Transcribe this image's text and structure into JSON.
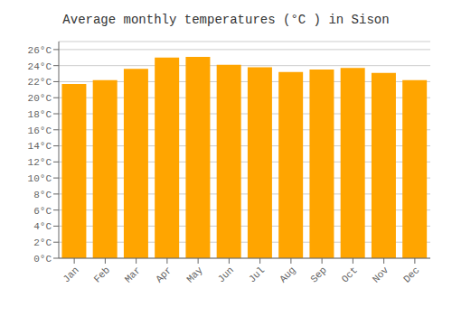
{
  "chart_data": {
    "type": "bar",
    "title": "Average monthly temperatures (°C ) in Sison",
    "categories": [
      "Jan",
      "Feb",
      "Mar",
      "Apr",
      "May",
      "Jun",
      "Jul",
      "Aug",
      "Sep",
      "Oct",
      "Nov",
      "Dec"
    ],
    "values": [
      21.7,
      22.2,
      23.6,
      25.0,
      25.1,
      24.1,
      23.8,
      23.2,
      23.5,
      23.7,
      23.1,
      22.2
    ],
    "color": "#FFA500",
    "ylim": [
      0,
      27
    ],
    "yticks": [
      {
        "value": 0,
        "label": "0°C"
      },
      {
        "value": 2,
        "label": "2°C"
      },
      {
        "value": 4,
        "label": "4°C"
      },
      {
        "value": 6,
        "label": "6°C"
      },
      {
        "value": 8,
        "label": "8°C"
      },
      {
        "value": 10,
        "label": "10°C"
      },
      {
        "value": 12,
        "label": "12°C"
      },
      {
        "value": 14,
        "label": "14°C"
      },
      {
        "value": 16,
        "label": "16°C"
      },
      {
        "value": 18,
        "label": "18°C"
      },
      {
        "value": 20,
        "label": "20°C"
      },
      {
        "value": 22,
        "label": "22°C"
      },
      {
        "value": 24,
        "label": "24°C"
      },
      {
        "value": 26,
        "label": "26°C"
      }
    ],
    "grid": true
  }
}
